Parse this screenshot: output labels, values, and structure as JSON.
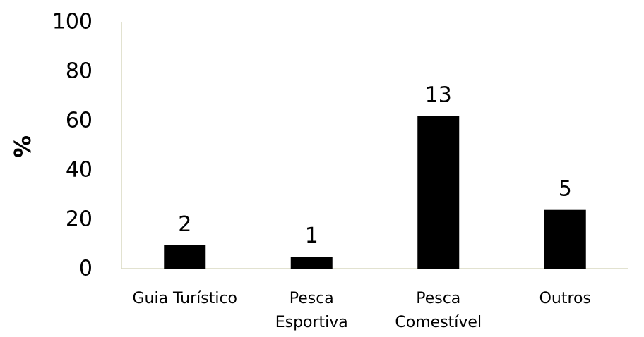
{
  "chart_data": {
    "type": "bar",
    "categories": [
      "Guia Turístico",
      "Pesca Esportiva",
      "Pesca Comestível",
      "Outros"
    ],
    "category_lines": [
      [
        "Guia Turístico"
      ],
      [
        "Pesca",
        "Esportiva"
      ],
      [
        "Pesca",
        "Comestível"
      ],
      [
        "Outros"
      ]
    ],
    "values": [
      9.5,
      4.8,
      61.9,
      23.8
    ],
    "data_labels": [
      "2",
      "1",
      "13",
      "5"
    ],
    "title": "",
    "xlabel": "",
    "ylabel": "%",
    "ylim": [
      0,
      100
    ],
    "yticks": [
      0,
      20,
      40,
      60,
      80,
      100
    ],
    "grid": false,
    "legend": "none",
    "bar_color": "#000000",
    "axis_color": "#d9d9c0"
  }
}
